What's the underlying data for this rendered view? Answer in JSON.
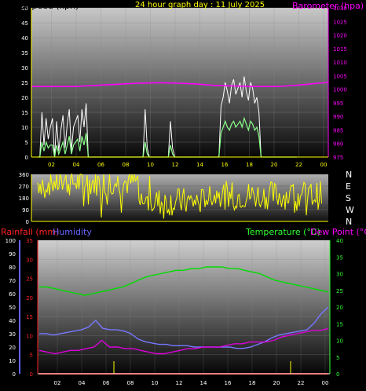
{
  "header": {
    "left_label": "Windspeed (kph)",
    "center_label": "24 hour graph day : 11 July 2025",
    "right_label": "Barometer (hpa)"
  },
  "bottom_header": {
    "rainfall": "Rainfall (mm)",
    "humidity": "Humidity",
    "temperature": "Temperature (°C)",
    "dewpoint": "Dew Point (°C)"
  },
  "colors": {
    "yellow": "#ffff00",
    "magenta": "#ff00ff",
    "green": "#33ff33",
    "gust": "#ffffff",
    "wind": "#88ff88",
    "direction": "#ffff00",
    "humidity": "#7777ff",
    "temperature": "#00dd00",
    "dewpoint": "#dd00dd",
    "rainfall": "#ff0000",
    "rain_axis": "#ff2222",
    "hum_axis": "#6666ff"
  },
  "chart_data": [
    {
      "type": "line",
      "name": "wind-baro",
      "x_ticks": [
        "02",
        "04",
        "06",
        "08",
        "10",
        "12",
        "14",
        "16",
        "18",
        "20",
        "22",
        "00"
      ],
      "y_left": {
        "label": "Windspeed (kph)",
        "ticks": [
          0,
          5,
          10,
          15,
          20,
          25,
          30,
          35,
          40,
          45,
          50
        ],
        "range": [
          0,
          50
        ]
      },
      "y_right": {
        "label": "Barometer (hpa)",
        "ticks": [
          975,
          980,
          985,
          990,
          995,
          1000,
          1005,
          1010,
          1015,
          1020,
          1025,
          1030
        ],
        "range": [
          975,
          1030
        ]
      },
      "series": [
        {
          "key": "gust",
          "axis": "left",
          "values": [
            0,
            0,
            15,
            4,
            13,
            6,
            10,
            13,
            0,
            12,
            2,
            9,
            14,
            3,
            11,
            16,
            2,
            10,
            12,
            14,
            5,
            16,
            10,
            18,
            0,
            0,
            0,
            0,
            0,
            0,
            0,
            0,
            0,
            0,
            0,
            0,
            0,
            0,
            0,
            0,
            0,
            0,
            0,
            0,
            0,
            0,
            0,
            0,
            0,
            0,
            0,
            16,
            3,
            0,
            0,
            0,
            0,
            0,
            0,
            0,
            0,
            0,
            0,
            12,
            3,
            0,
            0,
            0,
            0,
            0,
            0,
            0,
            0,
            0,
            0,
            0,
            0,
            0,
            0,
            0,
            0,
            0,
            0,
            0,
            0,
            0,
            0,
            17,
            20,
            25,
            22,
            18,
            24,
            26,
            21,
            23,
            25,
            20,
            27,
            22,
            19,
            25,
            23,
            18,
            20,
            15,
            0,
            0,
            0,
            0,
            0,
            0,
            0,
            0,
            0,
            0,
            0,
            0,
            0,
            0,
            0,
            0,
            0,
            0
          ]
        },
        {
          "key": "wind",
          "axis": "left",
          "values": [
            0,
            0,
            5,
            2,
            5,
            3,
            4,
            4,
            0,
            4,
            1,
            3,
            5,
            1,
            4,
            7,
            1,
            4,
            5,
            6,
            2,
            7,
            4,
            8,
            0,
            0,
            0,
            0,
            0,
            0,
            0,
            0,
            0,
            0,
            0,
            0,
            0,
            0,
            0,
            0,
            0,
            0,
            0,
            0,
            0,
            0,
            0,
            0,
            0,
            0,
            0,
            5,
            1,
            0,
            0,
            0,
            0,
            0,
            0,
            0,
            0,
            0,
            0,
            4,
            1,
            0,
            0,
            0,
            0,
            0,
            0,
            0,
            0,
            0,
            0,
            0,
            0,
            0,
            0,
            0,
            0,
            0,
            0,
            0,
            0,
            0,
            0,
            8,
            10,
            12,
            10,
            9,
            11,
            12,
            10,
            11,
            12,
            10,
            13,
            11,
            9,
            12,
            11,
            9,
            10,
            7,
            0,
            0,
            0,
            0,
            0,
            0,
            0,
            0,
            0,
            0,
            0,
            0,
            0,
            0,
            0,
            0,
            0,
            0
          ]
        },
        {
          "key": "baro",
          "axis": "right",
          "values": [
            1001,
            1001,
            1001,
            1001,
            1001,
            1001.2,
            1001.4,
            1001.6,
            1001.8,
            1002,
            1002.2,
            1002.3,
            1002.4,
            1002.3,
            1002.2,
            1002,
            1001.8,
            1001.5,
            1001.3,
            1001.2,
            1001.1,
            1001,
            1001,
            1001,
            1001.2,
            1001.5,
            1001.8,
            1002.2,
            1002.5
          ]
        }
      ]
    },
    {
      "type": "scatter",
      "name": "wind-direction",
      "y_ticks": [
        0,
        90,
        180,
        270,
        360
      ],
      "y_range": [
        0,
        360
      ],
      "compass": [
        "N",
        "W",
        "S",
        "E",
        "N"
      ]
    },
    {
      "type": "line",
      "name": "temp-hum-rain",
      "x_ticks": [
        "02",
        "04",
        "06",
        "08",
        "10",
        "12",
        "14",
        "16",
        "18",
        "20",
        "22",
        "00"
      ],
      "y_humidity": {
        "label": "Humidity",
        "ticks": [
          0,
          10,
          20,
          30,
          40,
          50,
          60,
          70,
          80,
          90,
          100
        ],
        "range": [
          0,
          100
        ]
      },
      "y_rain": {
        "label": "Rainfall (mm)",
        "ticks": [
          0,
          5,
          10,
          15,
          20,
          25,
          30,
          35
        ],
        "range": [
          0,
          35
        ]
      },
      "y_temp": {
        "label": "Temperature (°C)",
        "ticks": [
          0,
          5,
          10,
          15,
          20,
          25,
          30,
          35,
          40
        ],
        "range": [
          0,
          40
        ]
      },
      "series": [
        {
          "key": "temperature",
          "axis": "temp",
          "values": [
            26,
            26,
            25.5,
            25,
            24.5,
            24,
            23.5,
            24,
            24.5,
            25,
            25.5,
            26,
            27,
            28,
            29,
            29.5,
            30,
            30.5,
            31,
            31,
            31.5,
            31.5,
            32,
            32,
            32,
            31.5,
            31.5,
            31,
            30.5,
            30,
            29,
            28,
            27.5,
            27,
            26.5,
            26,
            25.5,
            25,
            24.5
          ]
        },
        {
          "key": "humidity",
          "axis": "humidity",
          "values": [
            30,
            30,
            29,
            30,
            31,
            32,
            33,
            35,
            40,
            34,
            33,
            33,
            32,
            30,
            26,
            24,
            23,
            22,
            22,
            21,
            21,
            21,
            20,
            20,
            20,
            20,
            20,
            20,
            19,
            19,
            20,
            22,
            24,
            27,
            29,
            30,
            31,
            32,
            33,
            38,
            45,
            50
          ]
        },
        {
          "key": "dewpoint",
          "axis": "temp",
          "values": [
            7,
            6.5,
            6,
            6.5,
            7,
            7,
            7.5,
            8,
            10,
            8,
            8,
            7.5,
            7.5,
            7,
            6.5,
            6,
            6,
            6.5,
            7,
            7.5,
            7.5,
            8,
            8,
            8,
            8.5,
            9,
            9,
            9.5,
            9.5,
            9.5,
            10,
            11,
            11.5,
            12,
            12.5,
            13,
            13,
            13.5
          ]
        },
        {
          "key": "rainfall",
          "axis": "rain",
          "values": [
            0,
            0,
            0,
            0,
            0,
            0,
            0,
            0,
            0,
            0,
            0,
            0,
            0,
            0,
            0,
            0,
            0,
            0,
            0,
            0,
            0,
            0,
            0,
            0,
            0,
            0,
            0,
            0,
            0,
            0
          ]
        }
      ]
    }
  ]
}
